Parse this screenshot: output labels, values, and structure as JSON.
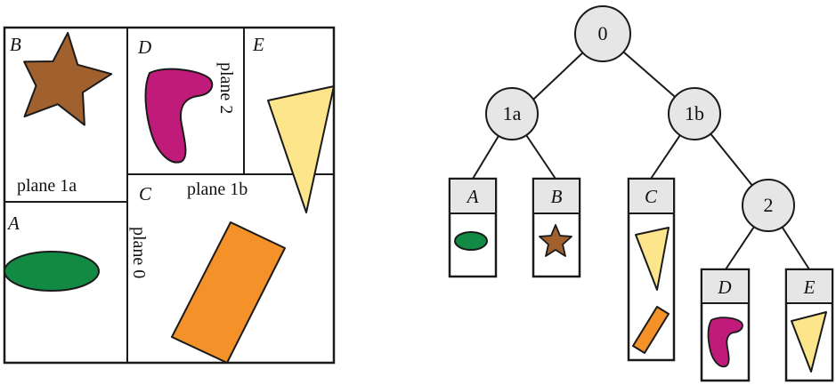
{
  "partition": {
    "regions": {
      "B": "B",
      "D": "D",
      "E": "E",
      "A": "A",
      "C": "C"
    },
    "planes": {
      "plane_1a": "plane 1a",
      "plane_1b": "plane 1b",
      "plane_2": "plane 2",
      "plane_0": "plane 0"
    }
  },
  "tree": {
    "root": "0",
    "left": "1a",
    "right": "1b",
    "inner": "2",
    "leaves": {
      "A": "A",
      "B": "B",
      "C": "C",
      "D": "D",
      "E": "E"
    }
  },
  "colors": {
    "star": "#a0612f",
    "boomerang": "#c01a7a",
    "triangle": "#fce58a",
    "ellipse": "#138a43",
    "rectangle": "#f49128",
    "node_fill": "#e6e6e6",
    "leaf_header": "#e6e6e6",
    "stroke": "#1a1a1a"
  }
}
